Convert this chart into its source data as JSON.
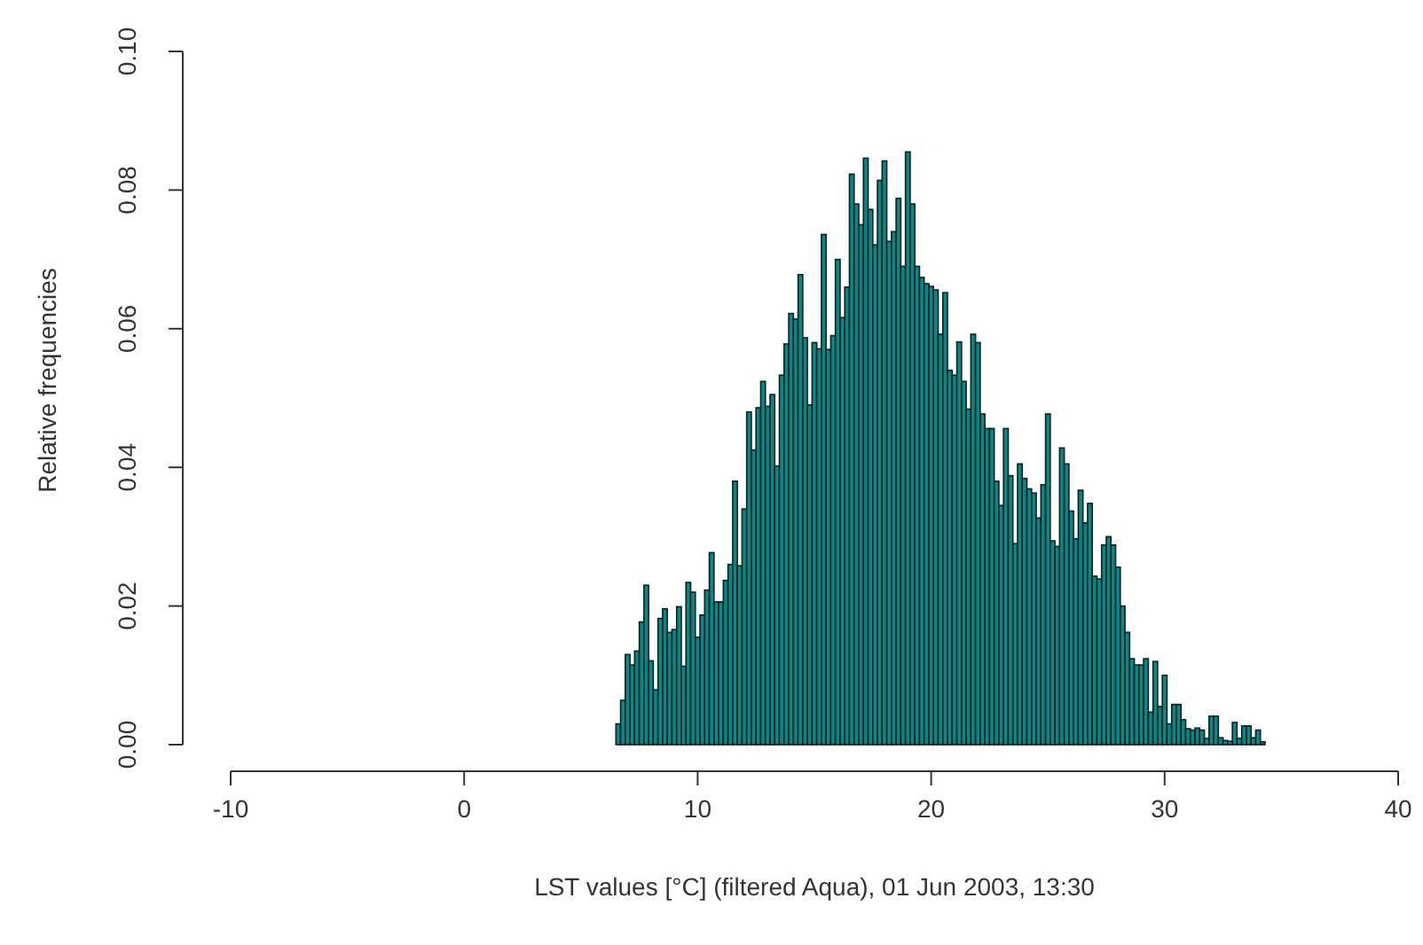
{
  "chart_data": {
    "type": "histogram",
    "xlabel": "LST values [°C] (filtered Aqua), 01 Jun 2003, 13:30",
    "ylabel": "Relative frequencies",
    "color": "#008b8b",
    "bins": [
      6.5,
      6.7,
      6.9,
      7.1,
      7.3,
      7.5,
      7.7,
      7.9,
      8.1,
      8.3,
      8.5,
      8.7,
      8.9,
      9.1,
      9.3,
      9.5,
      9.7,
      9.9,
      10.1,
      10.3,
      10.5,
      10.7,
      10.9,
      11.1,
      11.3,
      11.5,
      11.7,
      11.9,
      12.1,
      12.3,
      12.5,
      12.7,
      12.9,
      13.1,
      13.3,
      13.5,
      13.7,
      13.9,
      14.1,
      14.3,
      14.5,
      14.7,
      14.9,
      15.1,
      15.3,
      15.5,
      15.7,
      15.9,
      16.1,
      16.3,
      16.5,
      16.7,
      16.9,
      17.1,
      17.3,
      17.5,
      17.7,
      17.9,
      18.1,
      18.3,
      18.5,
      18.7,
      18.9,
      19.1,
      19.3,
      19.5,
      19.7,
      19.9,
      20.1,
      20.3,
      20.5,
      20.7,
      20.9,
      21.1,
      21.3,
      21.5,
      21.7,
      21.9,
      22.1,
      22.3,
      22.5,
      22.7,
      22.9,
      23.1,
      23.3,
      23.5,
      23.7,
      23.9,
      24.1,
      24.3,
      24.5,
      24.7,
      24.9,
      25.1,
      25.3,
      25.5,
      25.7,
      25.9,
      26.1,
      26.3,
      26.5,
      26.7,
      26.9,
      27.1,
      27.3,
      27.5,
      27.7,
      27.9,
      28.1,
      28.3,
      28.5,
      28.7,
      28.9,
      29.1,
      29.3,
      29.5,
      29.7,
      29.9,
      30.1,
      30.3,
      30.5,
      30.7,
      30.9,
      31.1,
      31.3,
      31.5,
      31.7,
      31.9,
      32.1,
      32.3,
      32.5,
      32.7,
      32.9,
      33.1,
      33.3,
      33.5,
      33.7,
      33.9,
      34.1,
      34.3
    ],
    "values": [
      0.003,
      0.0064,
      0.013,
      0.0115,
      0.0135,
      0.0177,
      0.023,
      0.0121,
      0.0079,
      0.0182,
      0.0196,
      0.0162,
      0.0166,
      0.0199,
      0.0113,
      0.0234,
      0.022,
      0.0155,
      0.0187,
      0.0223,
      0.0277,
      0.0206,
      0.0206,
      0.0237,
      0.026,
      0.038,
      0.0258,
      0.034,
      0.048,
      0.0425,
      0.0486,
      0.0524,
      0.0488,
      0.0505,
      0.0402,
      0.0533,
      0.0578,
      0.0622,
      0.0614,
      0.0678,
      0.0587,
      0.049,
      0.058,
      0.0571,
      0.0736,
      0.057,
      0.059,
      0.07,
      0.0616,
      0.066,
      0.0823,
      0.078,
      0.075,
      0.0846,
      0.0772,
      0.0721,
      0.0814,
      0.0842,
      0.0726,
      0.074,
      0.0788,
      0.069,
      0.0855,
      0.078,
      0.069,
      0.0674,
      0.0665,
      0.0661,
      0.0656,
      0.0592,
      0.0652,
      0.054,
      0.0533,
      0.0581,
      0.0524,
      0.0484,
      0.0592,
      0.058,
      0.0477,
      0.0456,
      0.0456,
      0.038,
      0.0345,
      0.0456,
      0.0388,
      0.029,
      0.0405,
      0.0384,
      0.0369,
      0.0363,
      0.0327,
      0.0375,
      0.0477,
      0.0294,
      0.0286,
      0.0428,
      0.0405,
      0.0337,
      0.0297,
      0.0367,
      0.032,
      0.0348,
      0.0243,
      0.0239,
      0.0288,
      0.03,
      0.0288,
      0.0256,
      0.02,
      0.0162,
      0.0124,
      0.0115,
      0.0115,
      0.0124,
      0.0047,
      0.012,
      0.0055,
      0.01,
      0.003,
      0.0058,
      0.0058,
      0.0036,
      0.0023,
      0.0021,
      0.0024,
      0.0021,
      0.0009,
      0.0041,
      0.0041,
      0.001,
      0.0006,
      0.0005,
      0.0032,
      0.0009,
      0.0027,
      0.0027,
      0.001,
      0.0021,
      0.0004
    ],
    "xlim": [
      -10,
      40
    ],
    "xticks": [
      -10,
      0,
      10,
      20,
      30,
      40
    ],
    "ylim": [
      0,
      0.1
    ],
    "yticks": [
      {
        "value": 0,
        "label": "0.00"
      },
      {
        "value": 0.02,
        "label": "0.02"
      },
      {
        "value": 0.04,
        "label": "0.04"
      },
      {
        "value": 0.06,
        "label": "0.06"
      },
      {
        "value": 0.08,
        "label": "0.08"
      },
      {
        "value": 0.1,
        "label": "0.10"
      }
    ]
  }
}
